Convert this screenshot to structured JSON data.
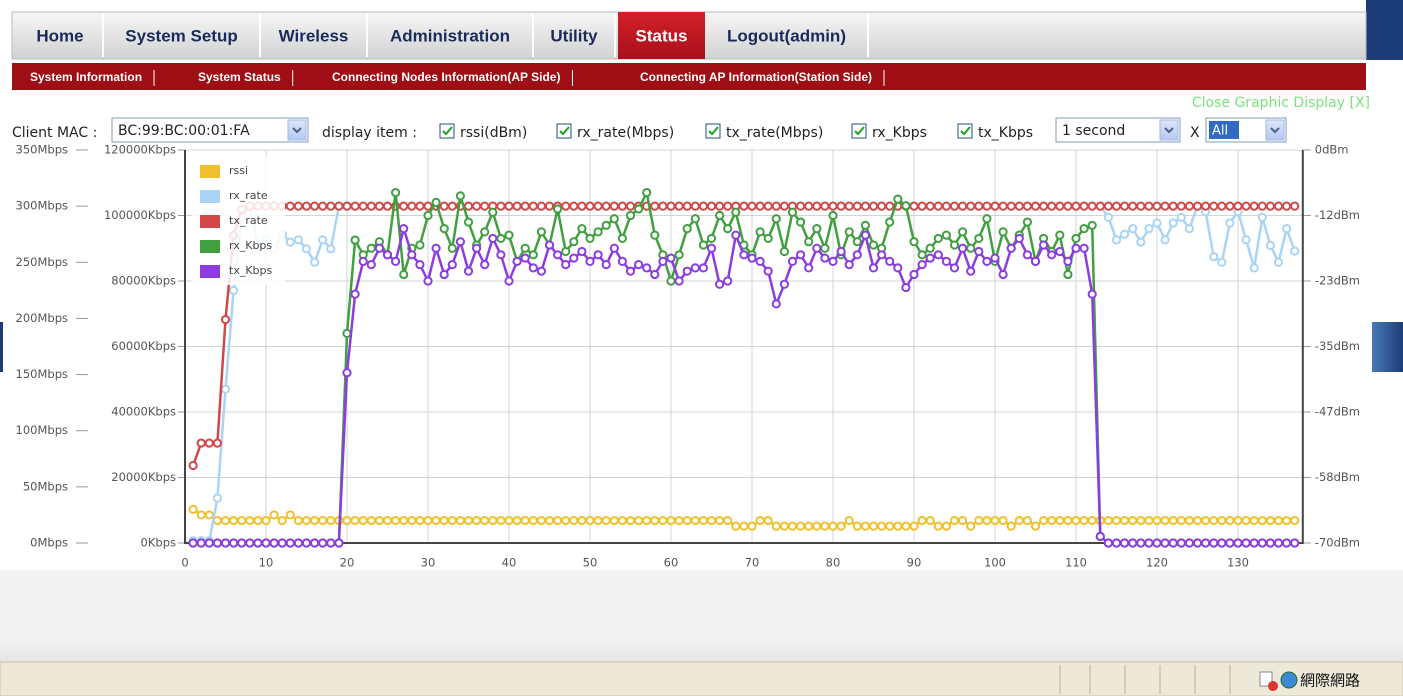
{
  "nav": {
    "tabs": [
      "Home",
      "System Setup",
      "Wireless",
      "Administration",
      "Utility",
      "Status",
      "Logout(admin)"
    ]
  },
  "subnav": [
    "System Information",
    "System Status",
    "Connecting Nodes Information(AP Side)",
    "Connecting AP Information(Station Side)"
  ],
  "close_link": "Close Graphic Display [X]",
  "controls": {
    "client_mac_label": "Client MAC :",
    "client_mac": "BC:99:BC:00:01:FA",
    "display_item_label": "display item :",
    "items": [
      "rssi(dBm)",
      "rx_rate(Mbps)",
      "tx_rate(Mbps)",
      "rx_Kbps",
      "tx_Kbps"
    ],
    "interval": "1 second",
    "x_label": "X",
    "range": "All"
  },
  "chart_data": {
    "type": "line",
    "legend": "top-left",
    "grid": true,
    "x": [
      1,
      2,
      3,
      4,
      5,
      6,
      7,
      8,
      9,
      10,
      11,
      12,
      13,
      14,
      15,
      16,
      17,
      18,
      19,
      20,
      21,
      22,
      23,
      24,
      25,
      26,
      27,
      28,
      29,
      30,
      31,
      32,
      33,
      34,
      35,
      36,
      37,
      38,
      39,
      40,
      41,
      42,
      43,
      44,
      45,
      46,
      47,
      48,
      49,
      50,
      51,
      52,
      53,
      54,
      55,
      56,
      57,
      58,
      59,
      60,
      61,
      62,
      63,
      64,
      65,
      66,
      67,
      68,
      69,
      70,
      71,
      72,
      73,
      74,
      75,
      76,
      77,
      78,
      79,
      80,
      81,
      82,
      83,
      84,
      85,
      86,
      87,
      88,
      89,
      90,
      91,
      92,
      93,
      94,
      95,
      96,
      97,
      98,
      99,
      100,
      101,
      102,
      103,
      104,
      105,
      106,
      107,
      108,
      109,
      110,
      111,
      112,
      113,
      114,
      115,
      116,
      117,
      118,
      119,
      120,
      121,
      122,
      123,
      124,
      125,
      126,
      127,
      128,
      129,
      130,
      131,
      132,
      133,
      134,
      135,
      136,
      137
    ],
    "xlim": [
      0,
      138
    ],
    "xticks": [
      0,
      10,
      20,
      30,
      40,
      50,
      60,
      70,
      80,
      90,
      100,
      110,
      120,
      130
    ],
    "ylim": [
      0,
      120000
    ],
    "yticks": [
      {
        "value": 0,
        "label": "0Kbps"
      },
      {
        "value": 20000,
        "label": "20000Kbps"
      },
      {
        "value": 40000,
        "label": "40000Kbps"
      },
      {
        "value": 60000,
        "label": "60000Kbps"
      },
      {
        "value": 80000,
        "label": "80000Kbps"
      },
      {
        "value": 100000,
        "label": "100000Kbps"
      },
      {
        "value": 120000,
        "label": "120000Kbps"
      }
    ],
    "y2lim": [
      -70,
      0
    ],
    "y2ticks": [
      {
        "value": 0,
        "label": "0dBm"
      },
      {
        "value": -11.67,
        "label": "-12dBm"
      },
      {
        "value": -23.33,
        "label": "-23dBm"
      },
      {
        "value": -35,
        "label": "-35dBm"
      },
      {
        "value": -46.67,
        "label": "-47dBm"
      },
      {
        "value": -58.33,
        "label": "-58dBm"
      },
      {
        "value": -70,
        "label": "-70dBm"
      }
    ],
    "y3lim": [
      0,
      350
    ],
    "y3ticks": [
      {
        "value": 0,
        "label": "0Mbps"
      },
      {
        "value": 50,
        "label": "50Mbps"
      },
      {
        "value": 100,
        "label": "100Mbps"
      },
      {
        "value": 150,
        "label": "150Mbps"
      },
      {
        "value": 200,
        "label": "200Mbps"
      },
      {
        "value": 250,
        "label": "250Mbps"
      },
      {
        "value": 300,
        "label": "300Mbps"
      },
      {
        "value": 350,
        "label": "350Mbps"
      }
    ],
    "series": [
      {
        "name": "rssi",
        "color": "#f0c030",
        "axis": "y2",
        "values": [
          -64,
          -65,
          -65,
          -66,
          -66,
          -66,
          -66,
          -66,
          -66,
          -66,
          -65,
          -66,
          -65,
          -66,
          -66,
          -66,
          -66,
          -66,
          -66,
          -66,
          -66,
          -66,
          -66,
          -66,
          -66,
          -66,
          -66,
          -66,
          -66,
          -66,
          -66,
          -66,
          -66,
          -66,
          -66,
          -66,
          -66,
          -66,
          -66,
          -66,
          -66,
          -66,
          -66,
          -66,
          -66,
          -66,
          -66,
          -66,
          -66,
          -66,
          -66,
          -66,
          -66,
          -66,
          -66,
          -66,
          -66,
          -66,
          -66,
          -66,
          -66,
          -66,
          -66,
          -66,
          -66,
          -66,
          -66,
          -67,
          -67,
          -67,
          -66,
          -66,
          -67,
          -67,
          -67,
          -67,
          -67,
          -67,
          -67,
          -67,
          -67,
          -66,
          -67,
          -67,
          -67,
          -67,
          -67,
          -67,
          -67,
          -67,
          -66,
          -66,
          -67,
          -67,
          -66,
          -66,
          -67,
          -66,
          -66,
          -66,
          -66,
          -67,
          -66,
          -66,
          -67,
          -66,
          -66,
          -66,
          -66,
          -66,
          -66,
          -66,
          -66,
          -66,
          -66,
          -66,
          -66,
          -66,
          -66,
          -66,
          -66,
          -66,
          -66,
          -66,
          -66,
          -66,
          -66,
          -66,
          -66,
          -66,
          -66,
          -66,
          -66,
          -66,
          -66,
          -66,
          -66
        ]
      },
      {
        "name": "rx_rate",
        "color": "#aad4f5",
        "axis": "y3",
        "values": [
          2,
          2,
          2,
          40,
          137,
          225,
          290,
          300,
          265,
          270,
          262,
          275,
          268,
          270,
          262,
          250,
          270,
          262,
          300,
          300,
          300,
          300,
          300,
          300,
          300,
          300,
          300,
          300,
          300,
          300,
          300,
          300,
          300,
          300,
          300,
          300,
          300,
          300,
          300,
          300,
          300,
          300,
          300,
          300,
          300,
          300,
          300,
          300,
          300,
          300,
          300,
          300,
          300,
          300,
          300,
          300,
          300,
          300,
          300,
          300,
          300,
          300,
          300,
          300,
          300,
          300,
          300,
          300,
          300,
          300,
          300,
          300,
          300,
          300,
          300,
          300,
          300,
          300,
          300,
          300,
          300,
          300,
          300,
          300,
          300,
          300,
          300,
          300,
          300,
          300,
          300,
          300,
          300,
          300,
          300,
          300,
          300,
          300,
          300,
          300,
          300,
          300,
          300,
          300,
          300,
          300,
          300,
          300,
          300,
          300,
          300,
          300,
          300,
          290,
          270,
          275,
          280,
          268,
          280,
          285,
          270,
          285,
          290,
          280,
          300,
          295,
          255,
          250,
          285,
          295,
          270,
          245,
          290,
          265,
          250,
          280,
          260
        ]
      },
      {
        "name": "tx_rate",
        "color": "#d04848",
        "axis": "y3",
        "values": [
          69,
          89,
          89,
          89,
          199,
          274,
          297,
          300,
          300,
          300,
          300,
          300,
          300,
          300,
          300,
          300,
          300,
          300,
          300,
          300,
          300,
          300,
          300,
          300,
          300,
          300,
          300,
          300,
          300,
          300,
          300,
          300,
          300,
          300,
          300,
          300,
          300,
          300,
          300,
          300,
          300,
          300,
          300,
          300,
          300,
          300,
          300,
          300,
          300,
          300,
          300,
          300,
          300,
          300,
          300,
          300,
          300,
          300,
          300,
          300,
          300,
          300,
          300,
          300,
          300,
          300,
          300,
          300,
          300,
          300,
          300,
          300,
          300,
          300,
          300,
          300,
          300,
          300,
          300,
          300,
          300,
          300,
          300,
          300,
          300,
          300,
          300,
          300,
          300,
          300,
          300,
          300,
          300,
          300,
          300,
          300,
          300,
          300,
          300,
          300,
          300,
          300,
          300,
          300,
          300,
          300,
          300,
          300,
          300,
          300,
          300,
          300,
          300,
          300,
          300,
          300,
          300,
          300,
          300,
          300,
          300,
          300,
          300,
          300,
          300,
          300,
          300,
          300,
          300,
          300,
          300,
          300,
          300,
          300,
          300,
          300,
          300
        ]
      },
      {
        "name": "rx_Kbps",
        "color": "#40a040",
        "values": [
          0,
          0,
          0,
          0,
          0,
          0,
          0,
          0,
          0,
          0,
          0,
          0,
          0,
          0,
          0,
          0,
          0,
          0,
          0,
          64000,
          92500,
          88000,
          90000,
          92000,
          88000,
          107000,
          82000,
          90000,
          91000,
          100000,
          104000,
          96000,
          90000,
          106000,
          98000,
          91000,
          95000,
          101000,
          93000,
          94000,
          86000,
          90000,
          88000,
          95000,
          91000,
          102000,
          89000,
          92000,
          96000,
          93000,
          95000,
          97000,
          99000,
          93000,
          100000,
          102000,
          107000,
          94000,
          88000,
          80000,
          88000,
          96000,
          99000,
          91000,
          93000,
          100000,
          96000,
          101000,
          91000,
          88000,
          95000,
          93000,
          99000,
          89000,
          101000,
          98000,
          92000,
          96000,
          90000,
          100000,
          88000,
          95000,
          92000,
          97000,
          91000,
          90000,
          98000,
          105000,
          103000,
          92000,
          88000,
          90000,
          93000,
          94000,
          91000,
          95000,
          90000,
          93000,
          99000,
          86000,
          95000,
          90000,
          94000,
          98000,
          86000,
          93000,
          89000,
          94000,
          82000,
          93000,
          96000,
          97000,
          2000,
          0,
          0,
          0,
          0,
          0,
          0,
          0,
          0,
          0,
          0,
          0,
          0,
          0,
          0,
          0,
          0,
          0,
          0,
          0,
          0,
          0,
          0,
          0,
          0
        ]
      },
      {
        "name": "tx_Kbps",
        "color": "#8c3ce0",
        "values": [
          0,
          0,
          0,
          0,
          0,
          0,
          0,
          0,
          0,
          0,
          0,
          0,
          0,
          0,
          0,
          0,
          0,
          0,
          0,
          52000,
          76000,
          86000,
          85000,
          90000,
          88000,
          86000,
          96000,
          88000,
          85000,
          80000,
          90000,
          82000,
          85000,
          92000,
          83000,
          90000,
          85000,
          93000,
          88000,
          80000,
          86000,
          87000,
          84000,
          83000,
          91000,
          88000,
          85000,
          87000,
          89000,
          86000,
          88000,
          85000,
          90000,
          86000,
          83000,
          85000,
          84000,
          82000,
          86000,
          87000,
          80000,
          83000,
          84000,
          84000,
          90000,
          79000,
          80000,
          94000,
          88000,
          87000,
          86000,
          83000,
          73000,
          79000,
          86000,
          88000,
          84000,
          90000,
          87000,
          86000,
          89000,
          85000,
          88000,
          94000,
          84000,
          88000,
          86000,
          84000,
          78000,
          82000,
          85000,
          87000,
          88000,
          86000,
          84000,
          90000,
          83000,
          89000,
          86000,
          87000,
          82000,
          90000,
          93000,
          88000,
          86000,
          91000,
          88000,
          89000,
          86000,
          90000,
          90000,
          76000,
          2000,
          0,
          0,
          0,
          0,
          0,
          0,
          0,
          0,
          0,
          0,
          0,
          0,
          0,
          0,
          0,
          0,
          0,
          0,
          0,
          0,
          0,
          0,
          0,
          0
        ]
      }
    ]
  },
  "status_bar": {
    "zone": "網際網路"
  }
}
